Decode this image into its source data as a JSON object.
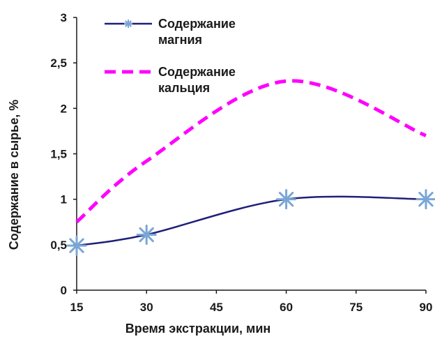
{
  "chart_data": {
    "type": "line",
    "xlabel": "Время экстракции, мин",
    "ylabel": "Содержание в сырье, %",
    "x_ticks": [
      "15",
      "30",
      "45",
      "60",
      "75",
      "90"
    ],
    "y_ticks": [
      "0",
      "0,5",
      "1",
      "1,5",
      "2",
      "2,5",
      "3"
    ],
    "xlim": [
      15,
      90
    ],
    "ylim": [
      0,
      3
    ],
    "grid": false,
    "legend_position": "top-center",
    "series": [
      {
        "name_lines": [
          "Содержание",
          "магния"
        ],
        "color": "#1f1f7a",
        "marker_color": "#7aa6d6",
        "style": "solid-smooth-with-star-markers",
        "x": [
          15,
          30,
          60,
          90
        ],
        "y": [
          0.49,
          0.61,
          1.0,
          1.0
        ]
      },
      {
        "name_lines": [
          "Содержание",
          "кальция"
        ],
        "color": "#ff00ff",
        "style": "dashed-smooth",
        "x": [
          15,
          30,
          60,
          90
        ],
        "y": [
          0.75,
          1.42,
          2.3,
          1.7
        ]
      }
    ]
  }
}
